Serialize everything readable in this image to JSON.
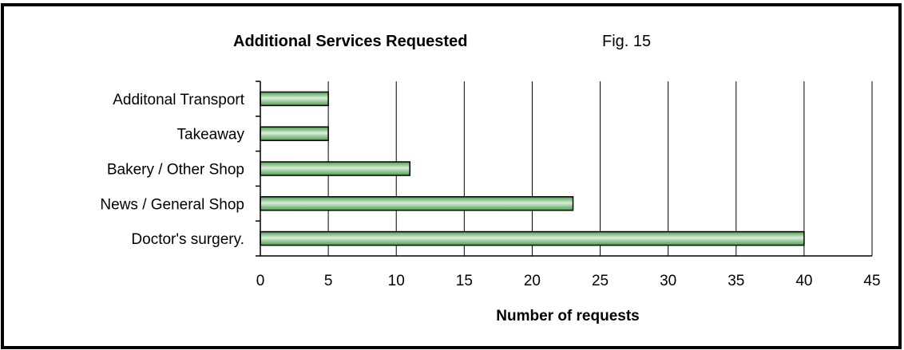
{
  "chart_data": {
    "type": "bar",
    "orientation": "horizontal",
    "title": "Additional Services Requested",
    "subtitle": "Fig. 15",
    "xlabel": "Number of requests",
    "ylabel": "",
    "categories": [
      "Additonal Transport",
      "Takeaway",
      "Bakery / Other Shop",
      "News / General Shop",
      "Doctor's surgery."
    ],
    "values": [
      5,
      5,
      11,
      23,
      40
    ],
    "xlim": [
      0,
      45
    ],
    "xticks": [
      "0",
      "5",
      "10",
      "15",
      "20",
      "25",
      "30",
      "35",
      "40",
      "45"
    ],
    "grid": "vertical",
    "legend": "none",
    "bar_color": "#8cc58c",
    "bar_stroke": "#000000"
  }
}
